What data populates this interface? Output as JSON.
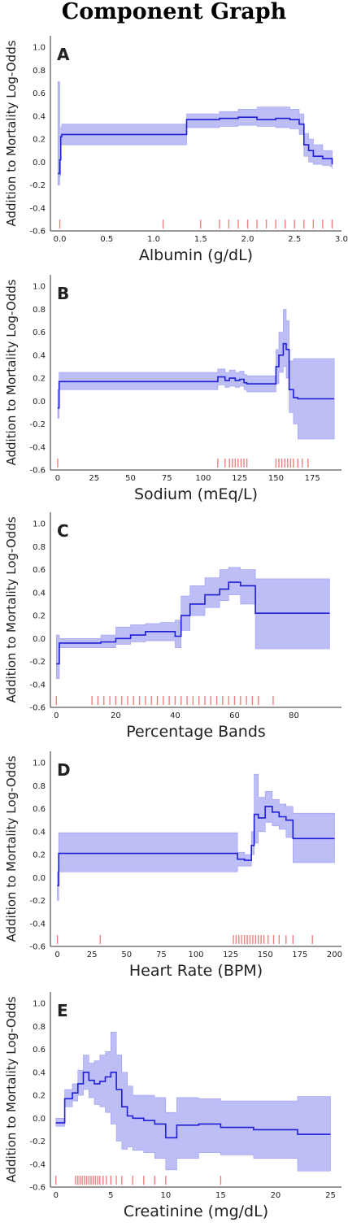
{
  "title": "Component Graph",
  "chart_data": [
    {
      "type": "line",
      "panel_label": "A",
      "xlabel": "Albumin (g/dL)",
      "ylabel": "Addition to Mortality Log-Odds",
      "xlim": [
        -0.1,
        3.0
      ],
      "ylim": [
        -0.6,
        1.1
      ],
      "xticks": [
        0.0,
        0.5,
        1.0,
        1.5,
        2.0,
        2.5,
        3.0
      ],
      "xtick_labels": [
        "0.0",
        "0.5",
        "1.0",
        "1.5",
        "2.0",
        "2.5",
        "3.0"
      ],
      "yticks": [
        -0.6,
        -0.4,
        -0.2,
        0.0,
        0.2,
        0.4,
        0.6,
        0.8,
        1.0
      ],
      "ytick_labels": [
        "-0.6",
        "-0.4",
        "-0.2",
        "0.0",
        "0.2",
        "0.4",
        "0.6",
        "0.8",
        "1.0"
      ],
      "line_color": "#1f1fd6",
      "band_color": "#b3b3f5",
      "rug_color": "#f08080",
      "series": [
        {
          "x": [
            -0.02,
            0.0,
            0.01,
            0.02,
            1.35,
            1.7,
            1.9,
            2.1,
            2.3,
            2.45,
            2.55,
            2.6,
            2.65,
            2.7,
            2.8,
            2.88,
            2.9
          ],
          "y": [
            -0.1,
            0.02,
            0.22,
            0.24,
            0.37,
            0.38,
            0.39,
            0.37,
            0.38,
            0.37,
            0.33,
            0.15,
            0.1,
            0.05,
            0.03,
            0.03,
            -0.02
          ],
          "lower": [
            -0.2,
            -0.12,
            0.15,
            0.15,
            0.3,
            0.31,
            0.32,
            0.31,
            0.3,
            0.29,
            0.24,
            0.05,
            0.0,
            -0.02,
            -0.03,
            -0.04,
            -0.06
          ],
          "upper": [
            0.7,
            0.2,
            0.3,
            0.33,
            0.42,
            0.44,
            0.46,
            0.48,
            0.48,
            0.46,
            0.42,
            0.25,
            0.2,
            0.15,
            0.1,
            0.1,
            0.05
          ]
        }
      ],
      "rug": [
        0.0,
        1.1,
        1.5,
        1.7,
        1.8,
        1.9,
        2.0,
        2.1,
        2.2,
        2.3,
        2.4,
        2.5,
        2.6,
        2.7,
        2.8,
        2.9
      ]
    },
    {
      "type": "line",
      "panel_label": "B",
      "xlabel": "Sodium (mEq/L)",
      "ylabel": "Addition to Mortality Log-Odds",
      "xlim": [
        -5,
        195
      ],
      "ylim": [
        -0.6,
        1.1
      ],
      "xticks": [
        0,
        25,
        50,
        75,
        100,
        125,
        150,
        175
      ],
      "xtick_labels": [
        "0",
        "25",
        "50",
        "75",
        "100",
        "125",
        "150",
        "175"
      ],
      "yticks": [
        -0.6,
        -0.4,
        -0.2,
        0.0,
        0.2,
        0.4,
        0.6,
        0.8,
        1.0
      ],
      "ytick_labels": [
        "-0.6",
        "-0.4",
        "-0.2",
        "0.0",
        "0.2",
        "0.4",
        "0.6",
        "0.8",
        "1.0"
      ],
      "line_color": "#1f1fd6",
      "band_color": "#b3b3f5",
      "rug_color": "#f08080",
      "series": [
        {
          "x": [
            0,
            1,
            110,
            115,
            118,
            122,
            125,
            128,
            130,
            150,
            152,
            155,
            157,
            159,
            162,
            165,
            170,
            190
          ],
          "y": [
            -0.06,
            0.17,
            0.21,
            0.18,
            0.2,
            0.18,
            0.19,
            0.16,
            0.15,
            0.3,
            0.4,
            0.5,
            0.45,
            0.1,
            0.03,
            0.02,
            0.02,
            0.02
          ],
          "lower": [
            -0.15,
            0.1,
            0.14,
            0.12,
            0.13,
            0.12,
            0.13,
            0.1,
            0.08,
            0.15,
            0.25,
            0.3,
            0.2,
            -0.1,
            -0.2,
            -0.33,
            -0.33,
            -0.33
          ],
          "upper": [
            0.1,
            0.25,
            0.28,
            0.25,
            0.27,
            0.25,
            0.26,
            0.23,
            0.22,
            0.45,
            0.6,
            0.8,
            0.7,
            0.35,
            0.37,
            0.37,
            0.37,
            0.37
          ]
        }
      ],
      "rug": [
        0,
        110,
        115,
        118,
        120,
        122,
        124,
        126,
        128,
        130,
        150,
        152,
        154,
        156,
        158,
        160,
        162,
        165,
        168,
        172
      ]
    },
    {
      "type": "line",
      "panel_label": "C",
      "xlabel": "Percentage Bands",
      "ylabel": "Addition to Mortality Log-Odds",
      "xlim": [
        -2,
        96
      ],
      "ylim": [
        -0.6,
        1.1
      ],
      "xticks": [
        0,
        20,
        40,
        60,
        80
      ],
      "xtick_labels": [
        "0",
        "20",
        "40",
        "60",
        "80"
      ],
      "yticks": [
        -0.6,
        -0.4,
        -0.2,
        0.0,
        0.2,
        0.4,
        0.6,
        0.8,
        1.0
      ],
      "ytick_labels": [
        "-0.6",
        "-0.4",
        "-0.2",
        "0.0",
        "0.2",
        "0.4",
        "0.6",
        "0.8",
        "1.0"
      ],
      "line_color": "#1f1fd6",
      "band_color": "#b3b3f5",
      "rug_color": "#f08080",
      "series": [
        {
          "x": [
            0,
            1,
            10,
            15,
            20,
            25,
            30,
            35,
            40,
            42,
            45,
            50,
            55,
            58,
            62,
            67,
            92
          ],
          "y": [
            -0.22,
            -0.04,
            -0.04,
            -0.03,
            0.0,
            0.03,
            0.06,
            0.06,
            0.02,
            0.2,
            0.3,
            0.38,
            0.43,
            0.49,
            0.46,
            0.22,
            0.22
          ],
          "lower": [
            -0.35,
            -0.08,
            -0.08,
            -0.08,
            -0.05,
            -0.03,
            -0.02,
            -0.02,
            -0.08,
            0.07,
            0.2,
            0.27,
            0.33,
            0.38,
            0.3,
            -0.09,
            -0.09
          ],
          "upper": [
            0.03,
            0.0,
            0.0,
            0.03,
            0.1,
            0.12,
            0.13,
            0.14,
            0.16,
            0.37,
            0.46,
            0.53,
            0.6,
            0.62,
            0.6,
            0.52,
            0.52
          ]
        }
      ],
      "rug": [
        0,
        12,
        14,
        16,
        18,
        20,
        22,
        24,
        26,
        28,
        30,
        32,
        34,
        36,
        38,
        40,
        42,
        44,
        46,
        48,
        50,
        52,
        54,
        56,
        58,
        60,
        62,
        64,
        66,
        68,
        73
      ]
    },
    {
      "type": "line",
      "panel_label": "D",
      "xlabel": "Heart Rate (BPM)",
      "ylabel": "Addition to Mortality Log-Odds",
      "xlim": [
        -5,
        205
      ],
      "ylim": [
        -0.6,
        1.1
      ],
      "xticks": [
        0,
        25,
        50,
        75,
        100,
        125,
        150,
        175,
        200
      ],
      "xtick_labels": [
        "0",
        "25",
        "50",
        "75",
        "100",
        "125",
        "150",
        "175",
        "200"
      ],
      "yticks": [
        -0.6,
        -0.4,
        -0.2,
        0.0,
        0.2,
        0.4,
        0.6,
        0.8,
        1.0
      ],
      "ytick_labels": [
        "-0.6",
        "-0.4",
        "-0.2",
        "0.0",
        "0.2",
        "0.4",
        "0.6",
        "0.8",
        "1.0"
      ],
      "line_color": "#1f1fd6",
      "band_color": "#b3b3f5",
      "rug_color": "#f08080",
      "series": [
        {
          "x": [
            0,
            1,
            130,
            135,
            140,
            142,
            145,
            150,
            155,
            160,
            165,
            170,
            200
          ],
          "y": [
            -0.07,
            0.21,
            0.16,
            0.15,
            0.28,
            0.55,
            0.52,
            0.62,
            0.57,
            0.53,
            0.5,
            0.34,
            0.34
          ],
          "lower": [
            -0.2,
            0.05,
            0.1,
            0.1,
            0.2,
            0.3,
            0.4,
            0.48,
            0.45,
            0.42,
            0.35,
            0.13,
            0.13
          ],
          "upper": [
            0.05,
            0.39,
            0.22,
            0.2,
            0.4,
            0.9,
            0.7,
            0.75,
            0.68,
            0.64,
            0.62,
            0.56,
            0.56
          ]
        }
      ],
      "rug": [
        0,
        31,
        127,
        129,
        131,
        133,
        135,
        137,
        139,
        141,
        143,
        145,
        147,
        149,
        152,
        156,
        160,
        165,
        170,
        184
      ]
    },
    {
      "type": "line",
      "panel_label": "E",
      "xlabel": "Creatinine (mg/dL)",
      "ylabel": "Addition to Mortality Log-Odds",
      "xlim": [
        -0.5,
        26
      ],
      "ylim": [
        -0.6,
        1.1
      ],
      "xticks": [
        0,
        5,
        10,
        15,
        20,
        25
      ],
      "xtick_labels": [
        "0",
        "5",
        "10",
        "15",
        "20",
        "25"
      ],
      "yticks": [
        -0.6,
        -0.4,
        -0.2,
        0.0,
        0.2,
        0.4,
        0.6,
        0.8,
        1.0
      ],
      "ytick_labels": [
        "-0.6",
        "-0.4",
        "-0.2",
        "0.0",
        "0.2",
        "0.4",
        "0.6",
        "0.8",
        "1.0"
      ],
      "line_color": "#1f1fd6",
      "band_color": "#b3b3f5",
      "rug_color": "#f08080",
      "series": [
        {
          "x": [
            0,
            0.8,
            1.5,
            2.0,
            2.5,
            3.0,
            3.5,
            4.0,
            4.5,
            5.0,
            5.5,
            6.0,
            6.5,
            7.0,
            8.0,
            9.0,
            10.0,
            11.0,
            13.0,
            15.0,
            18.0,
            22.0,
            25.0
          ],
          "y": [
            -0.04,
            0.17,
            0.22,
            0.3,
            0.4,
            0.33,
            0.3,
            0.32,
            0.36,
            0.4,
            0.25,
            0.1,
            0.02,
            0.0,
            -0.02,
            -0.05,
            -0.17,
            -0.06,
            -0.05,
            -0.08,
            -0.1,
            -0.14,
            -0.14
          ],
          "lower": [
            -0.07,
            0.1,
            0.15,
            0.2,
            0.25,
            0.18,
            0.12,
            0.1,
            0.05,
            -0.05,
            -0.2,
            -0.27,
            -0.25,
            -0.28,
            -0.3,
            -0.35,
            -0.45,
            -0.35,
            -0.3,
            -0.32,
            -0.35,
            -0.46,
            -0.46
          ],
          "upper": [
            0.0,
            0.25,
            0.3,
            0.42,
            0.55,
            0.48,
            0.5,
            0.55,
            0.58,
            0.75,
            0.55,
            0.4,
            0.28,
            0.2,
            0.2,
            0.18,
            0.05,
            0.18,
            0.17,
            0.15,
            0.15,
            0.19,
            0.19
          ]
        }
      ],
      "rug": [
        0,
        1.8,
        2.0,
        2.2,
        2.4,
        2.6,
        2.8,
        3.0,
        3.2,
        3.4,
        3.6,
        3.8,
        4.0,
        4.3,
        4.6,
        5.0,
        5.5,
        6.0,
        7.0,
        8.0,
        9.0,
        10.0,
        15.0
      ]
    }
  ]
}
